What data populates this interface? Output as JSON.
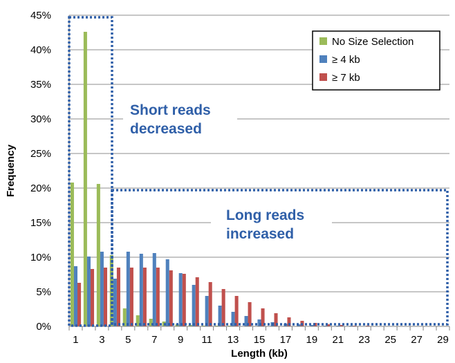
{
  "chart_data": {
    "type": "bar",
    "xlabel": "Length (kb)",
    "ylabel": "Frequency",
    "ylim": [
      0,
      45
    ],
    "y_ticks": [
      "0%",
      "5%",
      "10%",
      "15%",
      "20%",
      "25%",
      "30%",
      "35%",
      "40%",
      "45%"
    ],
    "x_tick_labels": [
      "1",
      "3",
      "5",
      "7",
      "9",
      "11",
      "13",
      "15",
      "17",
      "19",
      "21",
      "23",
      "25",
      "27",
      "29"
    ],
    "categories": [
      1,
      2,
      3,
      4,
      5,
      6,
      7,
      8,
      9,
      10,
      11,
      12,
      13,
      14,
      15,
      16,
      17,
      18,
      19,
      20,
      21,
      22,
      23,
      24,
      25,
      26,
      27,
      28,
      29
    ],
    "grid": true,
    "legend_placement": "top-right",
    "series": [
      {
        "name": "No Size Selection",
        "color": "#9bbb59",
        "values": [
          20.8,
          42.6,
          20.6,
          10.3,
          2.6,
          1.6,
          1.1,
          0.7,
          0.3,
          0.2,
          0.1,
          0.1,
          0.1,
          0,
          0,
          0,
          0,
          0,
          0,
          0,
          0,
          0,
          0,
          0,
          0,
          0,
          0,
          0,
          0
        ]
      },
      {
        "name": "≥ 4 kb",
        "color": "#4f81bd",
        "values": [
          8.7,
          10.1,
          10.8,
          6.9,
          10.8,
          10.5,
          10.6,
          9.7,
          7.7,
          6.0,
          4.4,
          3.0,
          2.1,
          1.5,
          1.0,
          0.6,
          0.4,
          0.3,
          0.2,
          0.1,
          0.1,
          0.1,
          0.05,
          0,
          0,
          0,
          0,
          0,
          0
        ]
      },
      {
        "name": "≥ 7 kb",
        "color": "#c0504d",
        "values": [
          6.3,
          8.3,
          8.5,
          8.5,
          8.5,
          8.5,
          8.5,
          8.1,
          7.6,
          7.1,
          6.4,
          5.4,
          4.4,
          3.5,
          2.6,
          1.9,
          1.3,
          0.8,
          0.5,
          0.3,
          0.2,
          0.1,
          0.1,
          0.05,
          0.05,
          0,
          0,
          0,
          0
        ]
      }
    ],
    "annotations": [
      {
        "line1": "Short reads",
        "line2": "decreased",
        "color": "#2f5fa8"
      },
      {
        "line1": "Long reads",
        "line2": "increased",
        "color": "#2f5fa8"
      }
    ]
  }
}
